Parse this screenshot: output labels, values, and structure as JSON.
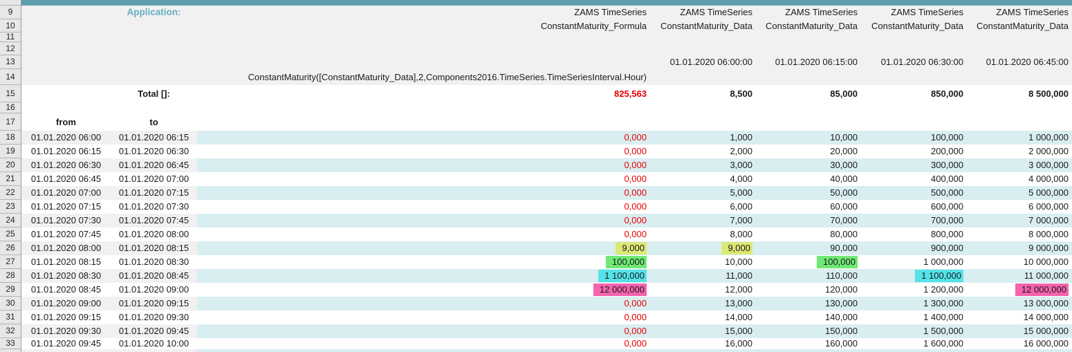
{
  "chrome": {
    "top_bar_color": "#5e9eac"
  },
  "labels": {
    "application": "Application:",
    "total": "Total []:",
    "from": "from",
    "to": "to"
  },
  "formula": "ConstantMaturity([ConstantMaturity_Data],2,Components2016.TimeSeries.TimeSeriesInterval.Hour)",
  "row_numbers": [
    "9",
    "10",
    "11",
    "12",
    "13",
    "14",
    "15",
    "16",
    "17",
    "18",
    "19",
    "20",
    "21",
    "22",
    "23",
    "24",
    "25",
    "26",
    "27",
    "28",
    "29",
    "30",
    "31",
    "32",
    "33"
  ],
  "columns": [
    {
      "app": "ZAMS TimeSeries",
      "series": "ConstantMaturity_Formula",
      "timestamp": "",
      "total": "825,563"
    },
    {
      "app": "ZAMS TimeSeries",
      "series": "ConstantMaturity_Data",
      "timestamp": "01.01.2020 06:00:00",
      "total": "8,500"
    },
    {
      "app": "ZAMS TimeSeries",
      "series": "ConstantMaturity_Data",
      "timestamp": "01.01.2020 06:15:00",
      "total": "85,000"
    },
    {
      "app": "ZAMS TimeSeries",
      "series": "ConstantMaturity_Data",
      "timestamp": "01.01.2020 06:30:00",
      "total": "850,000"
    },
    {
      "app": "ZAMS TimeSeries",
      "series": "ConstantMaturity_Data",
      "timestamp": "01.01.2020 06:45:00",
      "total": "8 500,000"
    }
  ],
  "highlight_colors": {
    "yellow": "#dce874",
    "green": "#6fe874",
    "cyan": "#55e2e8",
    "pink": "#f562ae"
  },
  "accent_colors": {
    "negative_or_zero": "#e60000",
    "stripe_teal": "#d9eef1",
    "stripe_gray": "#f1f1f1"
  },
  "data_rows": [
    {
      "num": "18",
      "from": "01.01.2020 06:00",
      "to": "01.01.2020 06:15",
      "values": [
        {
          "text": "0,000",
          "red": true
        },
        {
          "text": "1,000"
        },
        {
          "text": "10,000"
        },
        {
          "text": "100,000"
        },
        {
          "text": "1 000,000"
        }
      ]
    },
    {
      "num": "19",
      "from": "01.01.2020 06:15",
      "to": "01.01.2020 06:30",
      "values": [
        {
          "text": "0,000",
          "red": true
        },
        {
          "text": "2,000"
        },
        {
          "text": "20,000"
        },
        {
          "text": "200,000"
        },
        {
          "text": "2 000,000"
        }
      ]
    },
    {
      "num": "20",
      "from": "01.01.2020 06:30",
      "to": "01.01.2020 06:45",
      "values": [
        {
          "text": "0,000",
          "red": true
        },
        {
          "text": "3,000"
        },
        {
          "text": "30,000"
        },
        {
          "text": "300,000"
        },
        {
          "text": "3 000,000"
        }
      ]
    },
    {
      "num": "21",
      "from": "01.01.2020 06:45",
      "to": "01.01.2020 07:00",
      "values": [
        {
          "text": "0,000",
          "red": true
        },
        {
          "text": "4,000"
        },
        {
          "text": "40,000"
        },
        {
          "text": "400,000"
        },
        {
          "text": "4 000,000"
        }
      ]
    },
    {
      "num": "22",
      "from": "01.01.2020 07:00",
      "to": "01.01.2020 07:15",
      "values": [
        {
          "text": "0,000",
          "red": true
        },
        {
          "text": "5,000"
        },
        {
          "text": "50,000"
        },
        {
          "text": "500,000"
        },
        {
          "text": "5 000,000"
        }
      ]
    },
    {
      "num": "23",
      "from": "01.01.2020 07:15",
      "to": "01.01.2020 07:30",
      "values": [
        {
          "text": "0,000",
          "red": true
        },
        {
          "text": "6,000"
        },
        {
          "text": "60,000"
        },
        {
          "text": "600,000"
        },
        {
          "text": "6 000,000"
        }
      ]
    },
    {
      "num": "24",
      "from": "01.01.2020 07:30",
      "to": "01.01.2020 07:45",
      "values": [
        {
          "text": "0,000",
          "red": true
        },
        {
          "text": "7,000"
        },
        {
          "text": "70,000"
        },
        {
          "text": "700,000"
        },
        {
          "text": "7 000,000"
        }
      ]
    },
    {
      "num": "25",
      "from": "01.01.2020 07:45",
      "to": "01.01.2020 08:00",
      "values": [
        {
          "text": "0,000",
          "red": true
        },
        {
          "text": "8,000"
        },
        {
          "text": "80,000"
        },
        {
          "text": "800,000"
        },
        {
          "text": "8 000,000"
        }
      ]
    },
    {
      "num": "26",
      "from": "01.01.2020 08:00",
      "to": "01.01.2020 08:15",
      "values": [
        {
          "text": "9,000",
          "hl": "yellow"
        },
        {
          "text": "9,000",
          "hl": "yellow"
        },
        {
          "text": "90,000"
        },
        {
          "text": "900,000"
        },
        {
          "text": "9 000,000"
        }
      ]
    },
    {
      "num": "27",
      "from": "01.01.2020 08:15",
      "to": "01.01.2020 08:30",
      "values": [
        {
          "text": "100,000",
          "hl": "green"
        },
        {
          "text": "10,000"
        },
        {
          "text": "100,000",
          "hl": "green"
        },
        {
          "text": "1 000,000"
        },
        {
          "text": "10 000,000"
        }
      ]
    },
    {
      "num": "28",
      "from": "01.01.2020 08:30",
      "to": "01.01.2020 08:45",
      "values": [
        {
          "text": "1 100,000",
          "hl": "cyan"
        },
        {
          "text": "11,000"
        },
        {
          "text": "110,000"
        },
        {
          "text": "1 100,000",
          "hl": "cyan"
        },
        {
          "text": "11 000,000"
        }
      ]
    },
    {
      "num": "29",
      "from": "01.01.2020 08:45",
      "to": "01.01.2020 09:00",
      "values": [
        {
          "text": "12 000,000",
          "hl": "pink"
        },
        {
          "text": "12,000"
        },
        {
          "text": "120,000"
        },
        {
          "text": "1 200,000"
        },
        {
          "text": "12 000,000",
          "hl": "pink"
        }
      ]
    },
    {
      "num": "30",
      "from": "01.01.2020 09:00",
      "to": "01.01.2020 09:15",
      "values": [
        {
          "text": "0,000",
          "red": true
        },
        {
          "text": "13,000"
        },
        {
          "text": "130,000"
        },
        {
          "text": "1 300,000"
        },
        {
          "text": "13 000,000"
        }
      ]
    },
    {
      "num": "31",
      "from": "01.01.2020 09:15",
      "to": "01.01.2020 09:30",
      "values": [
        {
          "text": "0,000",
          "red": true
        },
        {
          "text": "14,000"
        },
        {
          "text": "140,000"
        },
        {
          "text": "1 400,000"
        },
        {
          "text": "14 000,000"
        }
      ]
    },
    {
      "num": "32",
      "from": "01.01.2020 09:30",
      "to": "01.01.2020 09:45",
      "values": [
        {
          "text": "0,000",
          "red": true
        },
        {
          "text": "15,000"
        },
        {
          "text": "150,000"
        },
        {
          "text": "1 500,000"
        },
        {
          "text": "15 000,000"
        }
      ]
    },
    {
      "num": "33",
      "from": "01.01.2020 09:45",
      "to": "01.01.2020 10:00",
      "values": [
        {
          "text": "0,000",
          "red": true
        },
        {
          "text": "16,000"
        },
        {
          "text": "160,000"
        },
        {
          "text": "1 600,000"
        },
        {
          "text": "16 000,000"
        }
      ]
    }
  ]
}
